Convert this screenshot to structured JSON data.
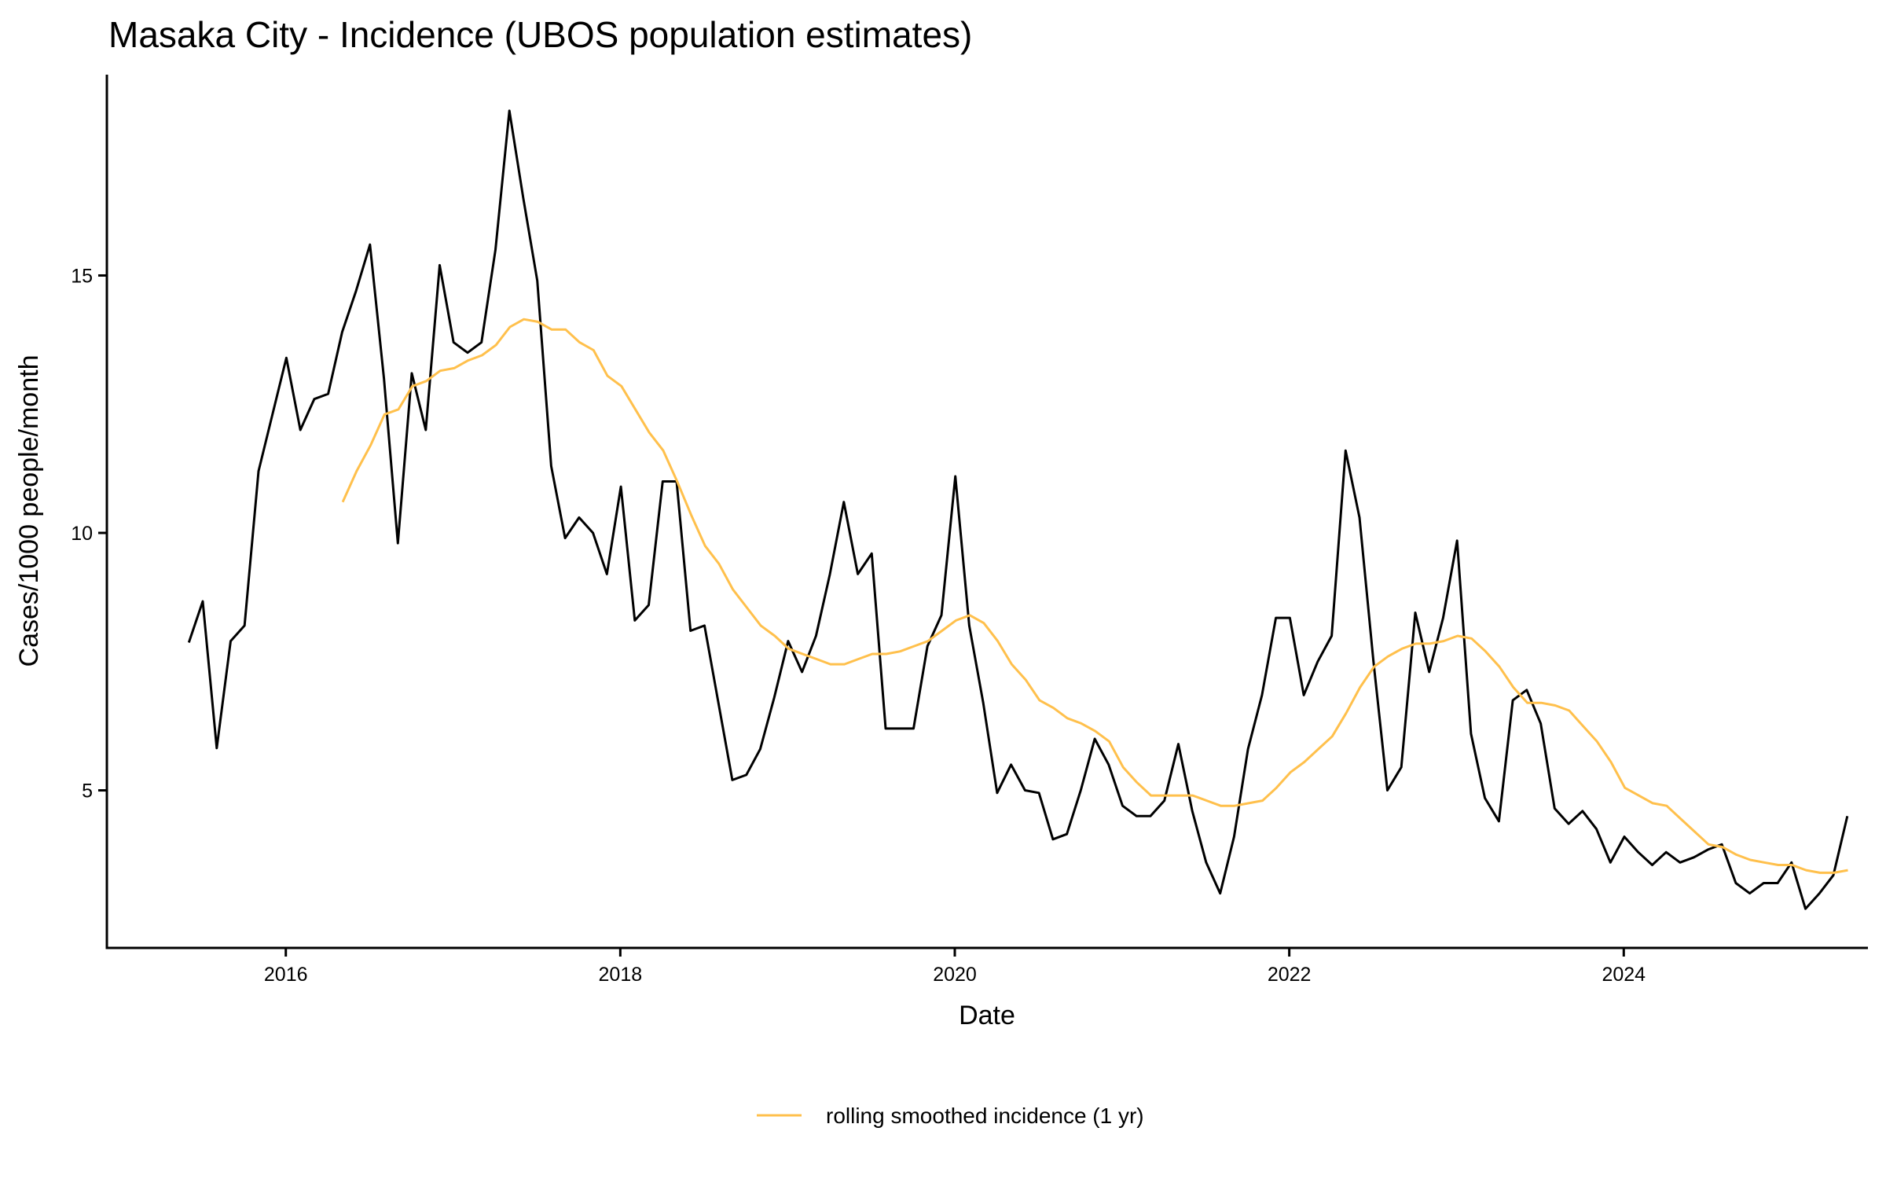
{
  "chart_data": {
    "type": "line",
    "title": "Masaka City - Incidence (UBOS population estimates)",
    "xlabel": "Date",
    "ylabel": "Cases/1000 people/month",
    "xlim": [
      2014.93,
      2025.46
    ],
    "ylim": [
      1.94,
      18.9
    ],
    "x_ticks": [
      2016,
      2018,
      2020,
      2022,
      2024
    ],
    "x_tick_labels": [
      "2016",
      "2018",
      "2020",
      "2022",
      "2024"
    ],
    "y_ticks": [
      5,
      10,
      15
    ],
    "y_tick_labels": [
      "5",
      "10",
      "15"
    ],
    "grid": false,
    "legend_position": "bottom",
    "series": [
      {
        "name": "",
        "color": "#000000",
        "in_legend": false,
        "x_start": 2015.42,
        "x_step_months": 1,
        "values": [
          7.87,
          8.67,
          5.82,
          7.9,
          8.2,
          11.2,
          12.3,
          13.4,
          12.0,
          12.6,
          12.7,
          13.9,
          14.7,
          15.6,
          13.0,
          9.8,
          13.1,
          12.0,
          15.2,
          13.7,
          13.5,
          13.7,
          15.5,
          18.2,
          16.5,
          14.9,
          11.3,
          9.9,
          10.3,
          10.0,
          9.2,
          10.9,
          8.3,
          8.6,
          11.0,
          11.0,
          8.1,
          8.2,
          6.7,
          5.2,
          5.3,
          5.8,
          6.8,
          7.9,
          7.3,
          8.0,
          9.2,
          10.6,
          9.2,
          9.6,
          6.2,
          6.2,
          6.2,
          7.8,
          8.4,
          11.1,
          8.2,
          6.7,
          4.95,
          5.5,
          5.0,
          4.95,
          4.05,
          4.15,
          5.0,
          6.0,
          5.5,
          4.7,
          4.5,
          4.5,
          4.8,
          5.9,
          4.6,
          3.6,
          3.0,
          4.1,
          5.8,
          6.85,
          8.35,
          8.35,
          6.85,
          7.5,
          8.0,
          11.6,
          10.3,
          7.5,
          5.0,
          5.45,
          8.45,
          7.3,
          8.35,
          9.85,
          6.1,
          4.85,
          4.4,
          6.75,
          6.95,
          6.3,
          4.65,
          4.35,
          4.6,
          4.25,
          3.6,
          4.1,
          3.8,
          3.55,
          3.8,
          3.6,
          3.7,
          3.85,
          3.95,
          3.2,
          3.0,
          3.2,
          3.2,
          3.6,
          2.7,
          3.0,
          3.35,
          4.5
        ]
      },
      {
        "name": "rolling smoothed incidence (1 yr)",
        "color": "#FFC04C",
        "in_legend": true,
        "x_start": 2016.34,
        "x_step_months": 1,
        "values": [
          10.6,
          11.2,
          11.7,
          12.3,
          12.4,
          12.85,
          12.95,
          13.15,
          13.2,
          13.35,
          13.45,
          13.65,
          14.0,
          14.15,
          14.1,
          13.95,
          13.95,
          13.7,
          13.55,
          13.05,
          12.85,
          12.4,
          11.95,
          11.6,
          11.0,
          10.35,
          9.75,
          9.4,
          8.9,
          8.55,
          8.2,
          8.0,
          7.75,
          7.65,
          7.55,
          7.45,
          7.45,
          7.55,
          7.65,
          7.65,
          7.7,
          7.8,
          7.9,
          8.1,
          8.3,
          8.4,
          8.25,
          7.9,
          7.45,
          7.15,
          6.75,
          6.6,
          6.4,
          6.3,
          6.15,
          5.95,
          5.45,
          5.15,
          4.9,
          4.9,
          4.9,
          4.9,
          4.8,
          4.7,
          4.7,
          4.75,
          4.8,
          5.05,
          5.35,
          5.55,
          5.8,
          6.05,
          6.5,
          7.0,
          7.4,
          7.6,
          7.75,
          7.85,
          7.85,
          7.9,
          8.0,
          7.95,
          7.7,
          7.4,
          7.0,
          6.7,
          6.7,
          6.65,
          6.55,
          6.25,
          5.95,
          5.55,
          5.05,
          4.9,
          4.75,
          4.7,
          4.45,
          4.2,
          3.95,
          3.9,
          3.75,
          3.65,
          3.6,
          3.55,
          3.55,
          3.45,
          3.4,
          3.4,
          3.45
        ]
      }
    ]
  }
}
